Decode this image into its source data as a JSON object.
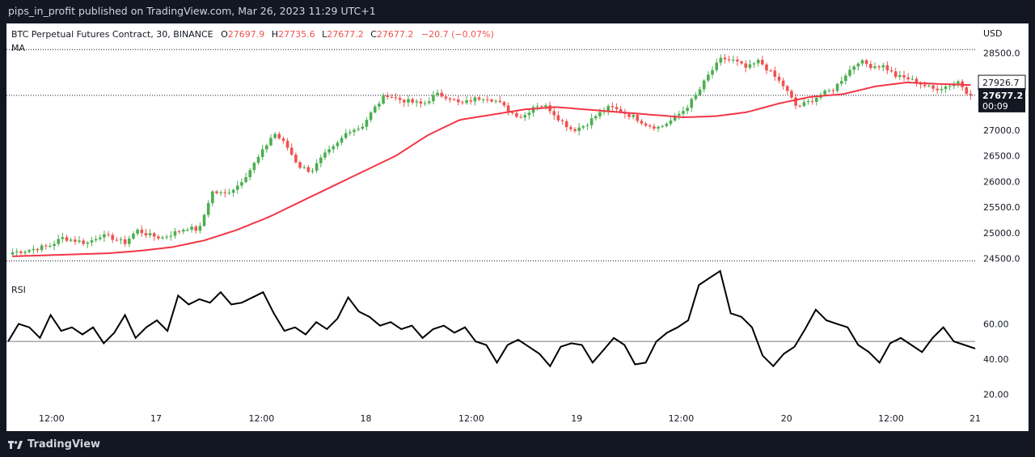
{
  "header": {
    "published_text": "pips_in_profit published on TradingView.com, Mar 26, 2023 11:29 UTC+1"
  },
  "footer": {
    "brand": "TradingView"
  },
  "legend": {
    "symbol": "BTC Perpetual Futures Contract, 30, BINANCE",
    "o_label": "O",
    "o_value": "27697.9",
    "h_label": "H",
    "h_value": "27735.6",
    "l_label": "L",
    "l_value": "27677.2",
    "c_label": "C",
    "c_value": "27677.2",
    "change": "−20.7 (−0.07%)",
    "ma_label": "MA",
    "rsi_label": "RSI"
  },
  "colors": {
    "up": "#26a69a",
    "up_candle": "#4caf50",
    "down": "#ef5350",
    "ma": "#f23645",
    "rsi": "#000000",
    "text": "#131722"
  },
  "chart_data": [
    {
      "type": "candlestick",
      "title": "BTC Perpetual Futures Contract, 30, BINANCE",
      "currency_label": "USD",
      "ylim": [
        24350,
        28700
      ],
      "y_ticks": [
        "28500.0",
        "28000.0",
        "27500.0",
        "27000.0",
        "26500.0",
        "26000.0",
        "25500.0",
        "25000.0",
        "24500.0"
      ],
      "x_ticks": [
        "12:00",
        "17",
        "12:00",
        "18",
        "12:00",
        "19",
        "12:00",
        "20",
        "12:00",
        "21"
      ],
      "x_tick_fraction": [
        0.045,
        0.153,
        0.262,
        0.37,
        0.479,
        0.588,
        0.696,
        0.805,
        0.913,
        1.0
      ],
      "price_labels": {
        "last": "27677.2",
        "countdown": "00:09",
        "ma_value": "27926.7"
      },
      "reference_line": 28570,
      "bottom_line": 24450,
      "close_anchors": [
        24620,
        24650,
        24700,
        24750,
        24900,
        24850,
        24800,
        24950,
        24900,
        24800,
        25050,
        24950,
        24900,
        25000,
        25100,
        25050,
        25800,
        25750,
        25900,
        26200,
        26550,
        26950,
        26700,
        26300,
        26200,
        26500,
        26700,
        27000,
        27050,
        27400,
        27700,
        27600,
        27550,
        27500,
        27700,
        27650,
        27500,
        27600,
        27650,
        27550,
        27350,
        27250,
        27500,
        27450,
        27200,
        27000,
        27100,
        27300,
        27450,
        27350,
        27250,
        27100,
        27050,
        27200,
        27400,
        27700,
        28100,
        28400,
        28350,
        28200,
        28350,
        28100,
        27850,
        27450,
        27550,
        27700,
        27800,
        28100,
        28350,
        28250,
        28250,
        28050,
        28000,
        27900,
        27800,
        27850,
        27950,
        27650
      ],
      "ma_anchors": [
        24540,
        24560,
        24580,
        24600,
        24650,
        24720,
        24850,
        25050,
        25300,
        25600,
        25900,
        26200,
        26500,
        26900,
        27200,
        27300,
        27400,
        27450,
        27400,
        27350,
        27300,
        27250,
        27270,
        27350,
        27520,
        27650,
        27700,
        27850,
        27930,
        27900,
        27880
      ],
      "candle_count": 231
    },
    {
      "type": "line",
      "name": "RSI",
      "ylim": [
        12,
        90
      ],
      "y_ticks": [
        "60.00",
        "40.00",
        "20.00"
      ],
      "midline": 50,
      "rsi_anchors": [
        50,
        60,
        58,
        52,
        65,
        56,
        58,
        54,
        58,
        49,
        55,
        65,
        52,
        58,
        62,
        56,
        76,
        71,
        74,
        72,
        78,
        71,
        72,
        75,
        78,
        66,
        56,
        58,
        54,
        61,
        57,
        63,
        75,
        67,
        64,
        59,
        61,
        57,
        59,
        52,
        57,
        59,
        55,
        58,
        50,
        48,
        38,
        48,
        51,
        47,
        43,
        36,
        47,
        49,
        48,
        38,
        45,
        52,
        48,
        37,
        38,
        50,
        55,
        58,
        62,
        82,
        86,
        90,
        66,
        64,
        58,
        42,
        36,
        43,
        47,
        57,
        68,
        62,
        60,
        58,
        48,
        44,
        38,
        49,
        52,
        48,
        44,
        52,
        58,
        50,
        48,
        46
      ]
    }
  ]
}
